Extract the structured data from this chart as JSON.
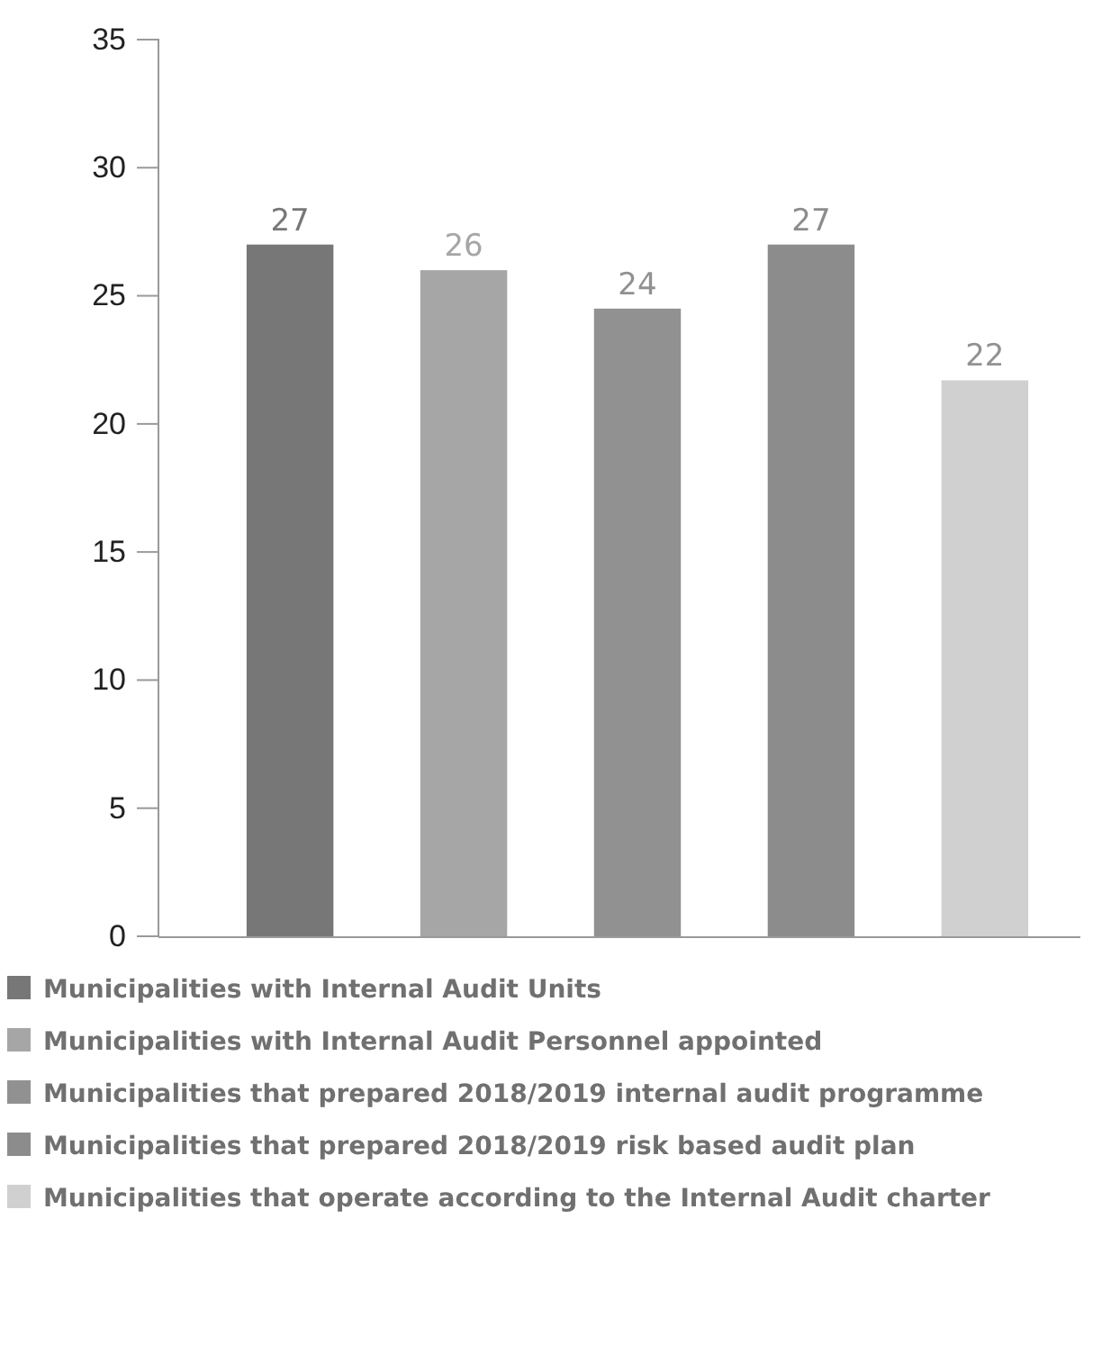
{
  "chart_data": {
    "type": "bar",
    "categories": [
      null,
      null,
      null,
      null,
      null
    ],
    "series": [
      {
        "name": "Municipalities with Internal Audit Units",
        "color": "#777777",
        "values": [
          27,
          null,
          null,
          null,
          null
        ]
      },
      {
        "name": "Municipalities with Internal Audit Personnel appointed",
        "color": "#a6a6a6",
        "values": [
          null,
          26,
          null,
          null,
          null
        ]
      },
      {
        "name": "Municipalities that prepared 2018/2019 internal audit programme",
        "color": "#919191",
        "values": [
          null,
          null,
          24.5,
          null,
          null
        ]
      },
      {
        "name": "Municipalities that prepared 2018/2019 risk based audit plan",
        "color": "#8c8c8c",
        "values": [
          null,
          null,
          null,
          27,
          null
        ]
      },
      {
        "name": "Municipalities that operate according to the Internal Audit charter",
        "color": "#d0d0d0",
        "values": [
          null,
          null,
          null,
          null,
          21.7
        ]
      }
    ],
    "value_labels": [
      [
        "27",
        null,
        null,
        null,
        null
      ],
      [
        null,
        "26",
        null,
        null,
        null
      ],
      [
        null,
        null,
        "24",
        null,
        null
      ],
      [
        null,
        null,
        null,
        "27",
        null
      ],
      [
        null,
        null,
        null,
        null,
        "22"
      ]
    ],
    "ylim": [
      0,
      35
    ],
    "yticks": [
      0,
      5,
      10,
      15,
      20,
      25,
      30,
      35
    ],
    "grid": false,
    "legend": "bottom"
  }
}
